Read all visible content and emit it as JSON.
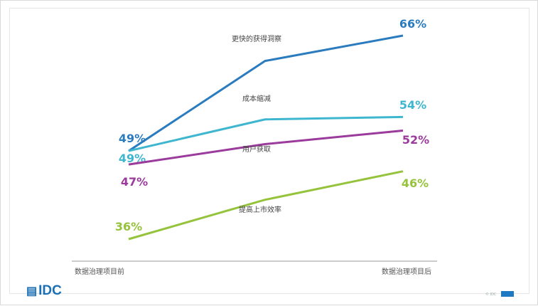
{
  "chart_data": {
    "type": "line",
    "categories": [
      "数据治理项目前",
      "数据治理项目后"
    ],
    "series": [
      {
        "name": "更快的获得洞察",
        "color": "#2b7bbf",
        "start": 49,
        "end": 66,
        "start_label": "49%",
        "end_label": "66%"
      },
      {
        "name": "成本缩减",
        "color": "#3fb6cf",
        "start": 49,
        "end": 54,
        "start_label": "49%",
        "end_label": "54%"
      },
      {
        "name": "用户获取",
        "color": "#9b3b9c",
        "start": 47,
        "end": 52,
        "start_label": "47%",
        "end_label": "52%"
      },
      {
        "name": "提高上市效率",
        "color": "#96c33c",
        "start": 36,
        "end": 46,
        "start_label": "36%",
        "end_label": "46%"
      }
    ]
  },
  "footer": {
    "logo_text": "IDC",
    "small_text": "© IDC"
  }
}
